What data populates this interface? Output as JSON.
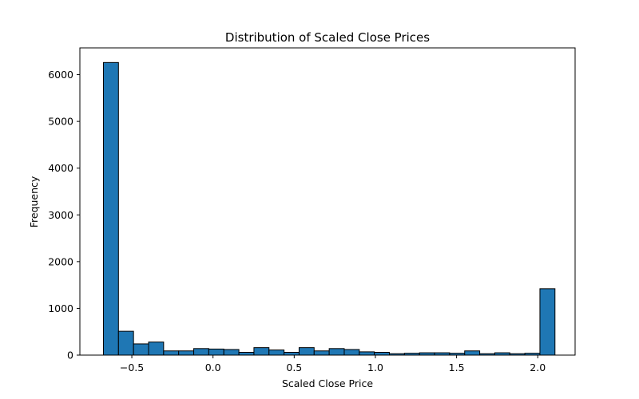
{
  "chart_data": {
    "type": "bar",
    "title": "Distribution of Scaled Close Prices",
    "xlabel": "Scaled Close Price",
    "ylabel": "Frequency",
    "xlim": [
      -0.82,
      2.23
    ],
    "ylim": [
      0,
      6573
    ],
    "bar_color": "#1f77b4",
    "edge_color": "#000000",
    "grid": false,
    "legend": "none",
    "bin_start": -0.675,
    "bin_width": 0.0927,
    "values": [
      6260,
      510,
      240,
      280,
      90,
      90,
      140,
      130,
      120,
      60,
      160,
      110,
      60,
      160,
      90,
      140,
      120,
      70,
      60,
      30,
      40,
      50,
      50,
      40,
      90,
      30,
      50,
      30,
      40,
      1420
    ],
    "x_ticks": [
      {
        "value": -0.5,
        "label": "−0.5"
      },
      {
        "value": 0.0,
        "label": "0.0"
      },
      {
        "value": 0.5,
        "label": "0.5"
      },
      {
        "value": 1.0,
        "label": "1.0"
      },
      {
        "value": 1.5,
        "label": "1.5"
      },
      {
        "value": 2.0,
        "label": "2.0"
      }
    ],
    "y_ticks": [
      {
        "value": 0,
        "label": "0"
      },
      {
        "value": 1000,
        "label": "1000"
      },
      {
        "value": 2000,
        "label": "2000"
      },
      {
        "value": 3000,
        "label": "3000"
      },
      {
        "value": 4000,
        "label": "4000"
      },
      {
        "value": 5000,
        "label": "5000"
      },
      {
        "value": 6000,
        "label": "6000"
      }
    ]
  }
}
